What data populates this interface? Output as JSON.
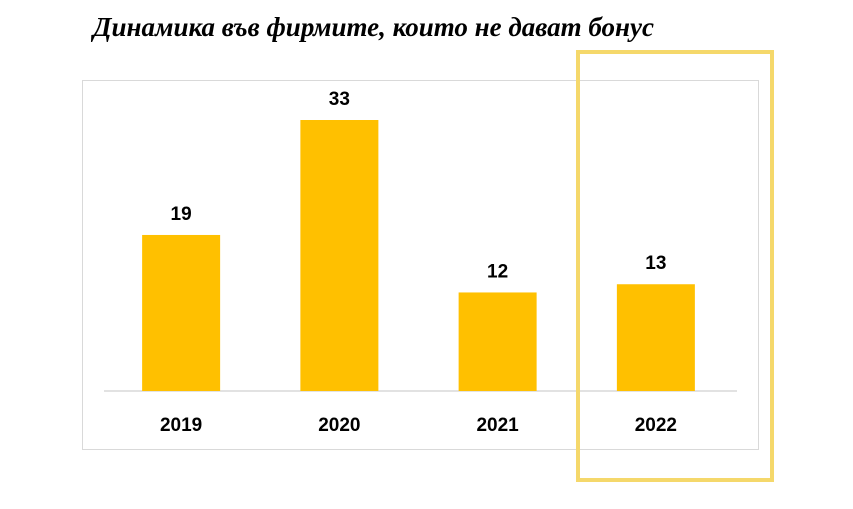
{
  "title": "Динамика във фирмите, които не дават бонус",
  "colors": {
    "bar": "#FFC000",
    "highlight": "#F5D86B",
    "axis": "#d9d9d9"
  },
  "chart_data": {
    "type": "bar",
    "title": "Динамика във фирмите, които не дават бонус",
    "categories": [
      "2019",
      "2020",
      "2021",
      "2022"
    ],
    "values": [
      19,
      33,
      12,
      13
    ],
    "data_labels": [
      "19",
      "33",
      "12",
      "13"
    ],
    "ylim": [
      0,
      35
    ],
    "grid": false,
    "legend": "none",
    "highlighted_category": "2022"
  }
}
